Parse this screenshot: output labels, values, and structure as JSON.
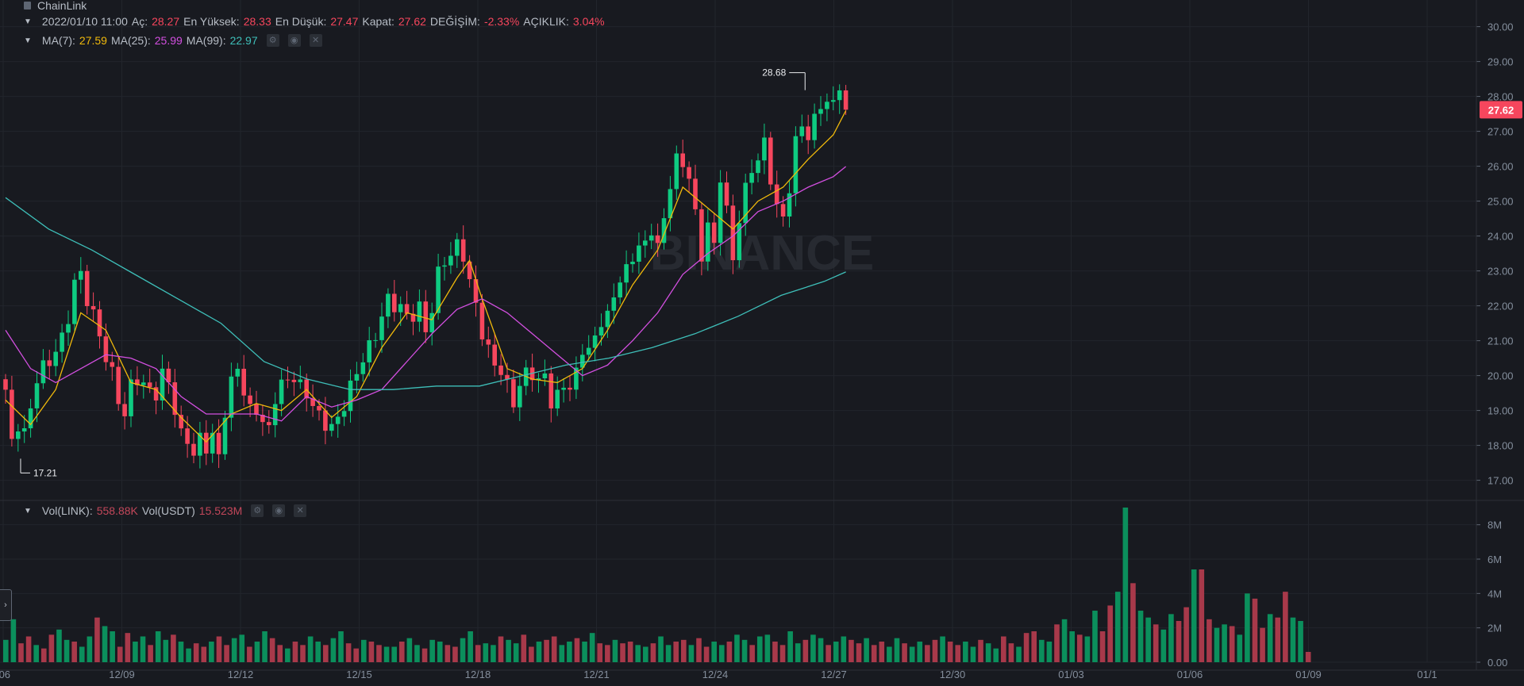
{
  "symbol": {
    "name": "ChainLink"
  },
  "ohlc": {
    "date": "2022/01/10 11:00",
    "open_label": "Aç:",
    "open": "28.27",
    "high_label": "En Yüksek:",
    "high": "28.33",
    "low_label": "En Düşük:",
    "low": "27.47",
    "close_label": "Kapat:",
    "close": "27.62",
    "change_label": "DEĞİŞİM:",
    "change": "-2.33%",
    "amplitude_label": "AÇIKLIK:",
    "amplitude": "3.04%"
  },
  "ma": {
    "ma7_label": "MA(7):",
    "ma7": "27.59",
    "ma25_label": "MA(25):",
    "ma25": "25.99",
    "ma99_label": "MA(99):",
    "ma99": "22.97"
  },
  "volume": {
    "link_label": "Vol(LINK):",
    "link": "558.88K",
    "usdt_label": "Vol(USDT)",
    "usdt": "15.523M"
  },
  "markers": {
    "high": "28.68",
    "low": "17.21",
    "last_price": "27.62"
  },
  "watermark": "BINANCE",
  "colors": {
    "up": "#0ecb81",
    "down": "#f6465d",
    "ma7": "#f0b90b",
    "ma25": "#d34fe0",
    "ma99": "#3ebfb9",
    "background": "#181a20"
  },
  "chart_data": {
    "type": "candlestick",
    "interval": "hourly",
    "x_ticks": [
      "/06",
      "12/09",
      "12/12",
      "12/15",
      "12/18",
      "12/21",
      "12/24",
      "12/27",
      "12/30",
      "01/03",
      "01/06",
      "01/09",
      "01/1"
    ],
    "price_axis": {
      "ticks": [
        "17.00",
        "18.00",
        "19.00",
        "20.00",
        "21.00",
        "22.00",
        "23.00",
        "24.00",
        "25.00",
        "26.00",
        "27.00",
        "28.00",
        "29.00",
        "30.00"
      ],
      "ylim": [
        16.4,
        30.4
      ]
    },
    "volume_axis": {
      "ticks": [
        "0.00",
        "2M",
        "4M",
        "6M",
        "8M"
      ],
      "ylim": [
        0,
        9.0
      ]
    },
    "close_path": [
      [
        0,
        19.4
      ],
      [
        1,
        18.0
      ],
      [
        2,
        18.6
      ],
      [
        3,
        18.4
      ],
      [
        5,
        20.0
      ],
      [
        7,
        20.3
      ],
      [
        9,
        21.0
      ],
      [
        10,
        21.8
      ],
      [
        11,
        22.8
      ],
      [
        12,
        22.9
      ],
      [
        13,
        22.2
      ],
      [
        14,
        21.6
      ],
      [
        15,
        21.0
      ],
      [
        16,
        20.6
      ],
      [
        17,
        20.1
      ],
      [
        18,
        19.4
      ],
      [
        19,
        19.0
      ],
      [
        20,
        19.6
      ],
      [
        21,
        19.8
      ],
      [
        22,
        19.7
      ],
      [
        23,
        19.5
      ],
      [
        24,
        19.6
      ],
      [
        25,
        20.2
      ],
      [
        26,
        19.8
      ],
      [
        27,
        19.0
      ],
      [
        28,
        18.2
      ],
      [
        29,
        18.0
      ],
      [
        30,
        17.8
      ],
      [
        31,
        18.3
      ],
      [
        32,
        18.0
      ],
      [
        33,
        18.4
      ],
      [
        34,
        17.6
      ],
      [
        35,
        18.8
      ],
      [
        36,
        19.8
      ],
      [
        37,
        20.2
      ],
      [
        38,
        19.6
      ],
      [
        39,
        19.2
      ],
      [
        40,
        19.0
      ],
      [
        41,
        18.6
      ],
      [
        42,
        18.4
      ],
      [
        43,
        19.2
      ],
      [
        44,
        19.8
      ],
      [
        45,
        20.0
      ],
      [
        46,
        20.0
      ],
      [
        47,
        19.8
      ],
      [
        48,
        19.4
      ],
      [
        49,
        19.0
      ],
      [
        50,
        18.8
      ],
      [
        51,
        18.6
      ],
      [
        52,
        18.6
      ],
      [
        53,
        18.9
      ],
      [
        54,
        19.2
      ],
      [
        55,
        19.6
      ],
      [
        56,
        20.0
      ],
      [
        57,
        20.4
      ],
      [
        58,
        20.8
      ],
      [
        59,
        21.3
      ],
      [
        60,
        21.8
      ],
      [
        61,
        22.2
      ],
      [
        62,
        22.0
      ],
      [
        63,
        21.8
      ],
      [
        64,
        21.6
      ],
      [
        65,
        21.8
      ],
      [
        66,
        22.0
      ],
      [
        67,
        21.4
      ],
      [
        68,
        22.0
      ],
      [
        69,
        22.8
      ],
      [
        70,
        23.2
      ],
      [
        71,
        23.4
      ],
      [
        72,
        23.7
      ],
      [
        73,
        23.6
      ],
      [
        74,
        22.8
      ],
      [
        75,
        22.0
      ],
      [
        76,
        21.2
      ],
      [
        77,
        20.6
      ],
      [
        78,
        20.2
      ],
      [
        79,
        20.2
      ],
      [
        80,
        19.8
      ],
      [
        81,
        19.3
      ],
      [
        82,
        19.8
      ],
      [
        83,
        20.0
      ],
      [
        84,
        19.9
      ],
      [
        85,
        19.8
      ],
      [
        86,
        20.0
      ],
      [
        87,
        19.3
      ],
      [
        88,
        19.6
      ],
      [
        89,
        19.7
      ],
      [
        90,
        19.6
      ],
      [
        91,
        20.0
      ],
      [
        92,
        20.6
      ],
      [
        93,
        20.8
      ],
      [
        94,
        21.2
      ],
      [
        95,
        21.6
      ],
      [
        96,
        21.8
      ],
      [
        97,
        22.2
      ],
      [
        98,
        22.6
      ],
      [
        99,
        23.0
      ],
      [
        100,
        23.4
      ],
      [
        101,
        23.8
      ],
      [
        102,
        23.9
      ],
      [
        103,
        24.2
      ],
      [
        104,
        23.6
      ],
      [
        105,
        24.4
      ],
      [
        106,
        25.4
      ],
      [
        107,
        26.2
      ],
      [
        108,
        26.2
      ],
      [
        109,
        25.8
      ],
      [
        110,
        24.6
      ],
      [
        111,
        23.4
      ],
      [
        112,
        24.2
      ],
      [
        113,
        23.6
      ],
      [
        114,
        25.8
      ],
      [
        115,
        24.8
      ],
      [
        116,
        23.4
      ],
      [
        117,
        24.6
      ],
      [
        118,
        25.2
      ],
      [
        119,
        25.8
      ],
      [
        120,
        26.2
      ],
      [
        121,
        26.6
      ],
      [
        122,
        25.8
      ],
      [
        123,
        25.0
      ],
      [
        124,
        24.4
      ],
      [
        125,
        25.4
      ],
      [
        126,
        26.6
      ],
      [
        127,
        27.0
      ],
      [
        128,
        27.0
      ],
      [
        129,
        27.4
      ],
      [
        130,
        27.8
      ],
      [
        131,
        28.0
      ],
      [
        132,
        27.6
      ],
      [
        133,
        28.2
      ],
      [
        134,
        27.62
      ]
    ],
    "ma7_path": [
      [
        0,
        19.3
      ],
      [
        4,
        18.6
      ],
      [
        8,
        19.6
      ],
      [
        12,
        21.8
      ],
      [
        16,
        21.3
      ],
      [
        20,
        19.8
      ],
      [
        24,
        19.6
      ],
      [
        28,
        18.8
      ],
      [
        32,
        18.1
      ],
      [
        36,
        18.9
      ],
      [
        40,
        19.2
      ],
      [
        44,
        19.0
      ],
      [
        48,
        19.6
      ],
      [
        52,
        18.8
      ],
      [
        56,
        19.4
      ],
      [
        60,
        20.8
      ],
      [
        64,
        21.8
      ],
      [
        68,
        21.6
      ],
      [
        72,
        22.8
      ],
      [
        74,
        23.3
      ],
      [
        76,
        22.2
      ],
      [
        80,
        20.2
      ],
      [
        84,
        19.9
      ],
      [
        88,
        19.8
      ],
      [
        92,
        20.2
      ],
      [
        96,
        21.3
      ],
      [
        100,
        22.6
      ],
      [
        104,
        23.6
      ],
      [
        108,
        25.4
      ],
      [
        112,
        24.8
      ],
      [
        116,
        24.2
      ],
      [
        120,
        25.0
      ],
      [
        124,
        25.4
      ],
      [
        128,
        26.2
      ],
      [
        132,
        26.9
      ],
      [
        134,
        27.59
      ]
    ],
    "ma25_path": [
      [
        0,
        21.3
      ],
      [
        4,
        20.2
      ],
      [
        8,
        19.8
      ],
      [
        12,
        20.2
      ],
      [
        16,
        20.6
      ],
      [
        20,
        20.5
      ],
      [
        24,
        20.2
      ],
      [
        28,
        19.4
      ],
      [
        32,
        18.9
      ],
      [
        36,
        18.9
      ],
      [
        40,
        18.9
      ],
      [
        44,
        18.7
      ],
      [
        48,
        19.4
      ],
      [
        52,
        19.1
      ],
      [
        56,
        19.3
      ],
      [
        60,
        19.6
      ],
      [
        64,
        20.4
      ],
      [
        68,
        21.2
      ],
      [
        72,
        21.9
      ],
      [
        76,
        22.2
      ],
      [
        80,
        21.8
      ],
      [
        84,
        21.2
      ],
      [
        88,
        20.6
      ],
      [
        92,
        20.0
      ],
      [
        96,
        20.3
      ],
      [
        100,
        21.0
      ],
      [
        104,
        21.8
      ],
      [
        108,
        22.9
      ],
      [
        112,
        23.5
      ],
      [
        116,
        24.0
      ],
      [
        120,
        24.7
      ],
      [
        124,
        25.0
      ],
      [
        128,
        25.4
      ],
      [
        132,
        25.7
      ],
      [
        134,
        25.99
      ]
    ],
    "ma99_path": [
      [
        0,
        25.1
      ],
      [
        8,
        24.2
      ],
      [
        16,
        23.6
      ],
      [
        24,
        22.9
      ],
      [
        32,
        22.2
      ],
      [
        40,
        21.5
      ],
      [
        48,
        20.4
      ],
      [
        56,
        19.9
      ],
      [
        64,
        19.6
      ],
      [
        72,
        19.6
      ],
      [
        80,
        19.7
      ],
      [
        88,
        19.7
      ],
      [
        96,
        20.0
      ],
      [
        104,
        20.3
      ],
      [
        112,
        20.5
      ],
      [
        120,
        20.8
      ],
      [
        128,
        21.2
      ],
      [
        136,
        21.7
      ],
      [
        144,
        22.3
      ],
      [
        152,
        22.7
      ],
      [
        156,
        22.97
      ]
    ],
    "volume_M": [
      1.3,
      2.5,
      1.1,
      1.5,
      1.0,
      0.8,
      1.6,
      1.9,
      1.3,
      1.2,
      0.9,
      1.5,
      2.6,
      2.1,
      1.8,
      0.9,
      1.7,
      1.2,
      1.5,
      1.0,
      1.8,
      1.3,
      1.6,
      1.2,
      0.8,
      1.1,
      0.9,
      1.2,
      1.5,
      1.0,
      1.4,
      1.6,
      0.9,
      1.2,
      1.8,
      1.4,
      1.0,
      0.8,
      1.2,
      1.0,
      1.5,
      1.2,
      1.0,
      1.4,
      1.8,
      1.1,
      0.8,
      1.3,
      1.2,
      1.0,
      0.9,
      0.9,
      1.2,
      1.4,
      1.0,
      0.8,
      1.3,
      1.2,
      1.0,
      0.9,
      1.4,
      1.8,
      1.0,
      1.1,
      1.0,
      1.5,
      1.3,
      1.1,
      1.6,
      0.9,
      1.2,
      1.3,
      1.5,
      1.0,
      1.2,
      1.4,
      1.2,
      1.7,
      1.1,
      1.0,
      1.3,
      1.1,
      1.2,
      1.0,
      0.9,
      1.1,
      1.5,
      1.0,
      1.2,
      1.3,
      1.0,
      1.4,
      0.9,
      1.2,
      1.0,
      1.2,
      1.6,
      1.3,
      1.0,
      1.5,
      1.6,
      1.2,
      1.0,
      1.8,
      1.1,
      1.3,
      1.6,
      1.4,
      1.0,
      1.2,
      1.5,
      1.3,
      1.1,
      1.4,
      1.0,
      1.2,
      0.9,
      1.4,
      1.1,
      0.9,
      1.2,
      1.0,
      1.3,
      1.5,
      1.2,
      1.0,
      1.2,
      0.9,
      1.3,
      1.1,
      0.8,
      1.5,
      1.1,
      0.9,
      1.7,
      1.8,
      1.3,
      1.2,
      2.2,
      2.5,
      1.8,
      1.6,
      1.5,
      3.0,
      1.8,
      3.3,
      4.1,
      9.0,
      4.6,
      3.0,
      2.6,
      2.2,
      1.9,
      2.8,
      2.4,
      3.2,
      5.4,
      5.4,
      2.5,
      2.0,
      2.2,
      2.1,
      1.6,
      4.0,
      3.7,
      2.0,
      2.8,
      2.6,
      4.1,
      2.6,
      2.4,
      0.6
    ]
  }
}
